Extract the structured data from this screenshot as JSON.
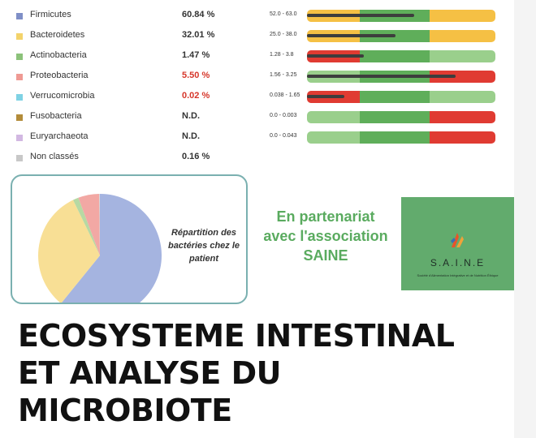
{
  "table": {
    "rows": [
      {
        "name": "Firmicutes",
        "value": "60.84 %",
        "value_alert": false,
        "range": "52.0 - 63.0",
        "swatch": "#7f8fc7",
        "segments": [
          "#f5c044",
          "#5fae5a",
          "#f5c044"
        ],
        "level": 0.57,
        "has_bar": true
      },
      {
        "name": "Bacteroidetes",
        "value": "32.01 %",
        "value_alert": false,
        "range": "25.0 - 38.0",
        "swatch": "#f3d36b",
        "segments": [
          "#f5c044",
          "#5fae5a",
          "#f5c044"
        ],
        "level": 0.47,
        "has_bar": true
      },
      {
        "name": "Actinobacteria",
        "value": "1.47 %",
        "value_alert": false,
        "range": "1.28 - 3.8",
        "swatch": "#8cc27a",
        "segments": [
          "#e03b32",
          "#5fae5a",
          "#9acf8c"
        ],
        "level": 0.3,
        "has_bar": true
      },
      {
        "name": "Proteobacteria",
        "value": "5.50 %",
        "value_alert": true,
        "range": "1.56 - 3.25",
        "swatch": "#ef9a94",
        "segments": [
          "#9acf8c",
          "#5fae5a",
          "#e03b32"
        ],
        "level": 0.79,
        "has_bar": true
      },
      {
        "name": "Verrucomicrobia",
        "value": "0.02 %",
        "value_alert": true,
        "range": "0.038 - 1.65",
        "swatch": "#7fd2e4",
        "segments": [
          "#e03b32",
          "#5fae5a",
          "#9acf8c"
        ],
        "level": 0.2,
        "has_bar": true
      },
      {
        "name": "Fusobacteria",
        "value": "N.D.",
        "value_alert": false,
        "range": "0.0 - 0.003",
        "swatch": "#b38c3a",
        "segments": [
          "#9acf8c",
          "#5fae5a",
          "#e03b32"
        ],
        "level": 0,
        "has_bar": true
      },
      {
        "name": "Euryarchaeota",
        "value": "N.D.",
        "value_alert": false,
        "range": "0.0 - 0.043",
        "swatch": "#d2b8e2",
        "segments": [
          "#9acf8c",
          "#5fae5a",
          "#e03b32"
        ],
        "level": 0,
        "has_bar": true
      },
      {
        "name": "Non classés",
        "value": "0.16 %",
        "value_alert": false,
        "range": "",
        "swatch": "#c8c8c8",
        "segments": [],
        "level": 0,
        "has_bar": false
      }
    ]
  },
  "pie": {
    "caption_lines": [
      "Répartition des",
      "bactéries chez le",
      "patient"
    ],
    "slices": [
      {
        "value": 60.84,
        "color": "#a5b4e0"
      },
      {
        "value": 32.01,
        "color": "#f8df95"
      },
      {
        "value": 1.47,
        "color": "#b7d9a3"
      },
      {
        "value": 5.5,
        "color": "#f2a8a4"
      },
      {
        "value": 0.02,
        "color": "#a5e0ec"
      },
      {
        "value": 0.16,
        "color": "#d6d6d6"
      }
    ]
  },
  "partner": {
    "lines": [
      "En partenariat",
      "avec l'association",
      "SAINE"
    ]
  },
  "logo": {
    "name": "S.A.I.N.E",
    "tagline": "Société d'Alimentation Intégrative et de Nutrition Éthique",
    "background": "#62ab6d"
  },
  "headline": {
    "lines": [
      "ECOSYSTEME INTESTINAL",
      "ET ANALYSE DU",
      "MICROBIOTE"
    ]
  }
}
